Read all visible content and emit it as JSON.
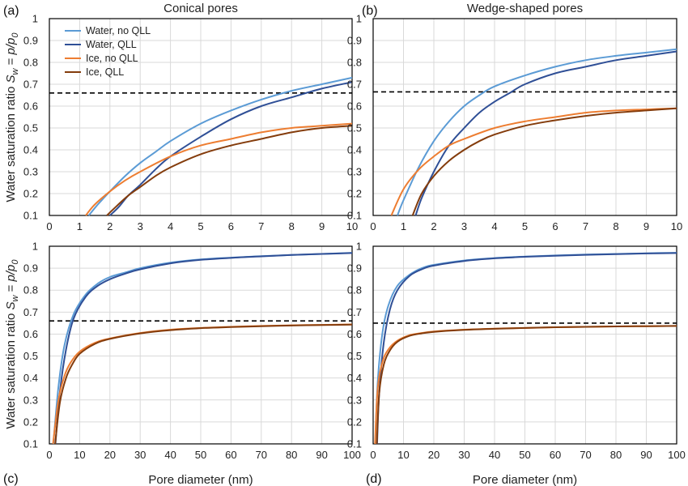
{
  "figure": {
    "y_axis_label_prefix": "Water saturation ratio ",
    "y_axis_label_math": "S_w = p/p_0",
    "legend": [
      "Water, no QLL",
      "Water, QLL",
      "Ice, no QLL",
      "Ice, QLL"
    ]
  },
  "colors": {
    "water_no_qll": "#5b9bd5",
    "water_qll": "#2f4f96",
    "ice_no_qll": "#ed7d31",
    "ice_qll": "#843c0c",
    "grid": "#d9d9d9",
    "threshold": "#000000"
  },
  "chart_data": [
    {
      "type": "line",
      "panel_label": "(a)",
      "title": "Conical pores",
      "xlabel": "",
      "ylabel": "Water saturation ratio S_w = p/p_0",
      "xlim": [
        0,
        10
      ],
      "ylim": [
        0.1,
        1
      ],
      "xticks": [
        "0",
        "1",
        "2",
        "3",
        "4",
        "5",
        "6",
        "7",
        "8",
        "9",
        "10"
      ],
      "yticks": [
        "0.1",
        "0.2",
        "0.3",
        "0.4",
        "0.5",
        "0.6",
        "0.7",
        "0.8",
        "0.9",
        "1"
      ],
      "grid": true,
      "legend_position": "top-left",
      "threshold": 0.66,
      "series": [
        {
          "name": "Water, no QLL",
          "color": "#5b9bd5",
          "x": [
            1.3,
            1.6,
            2,
            2.5,
            3,
            3.5,
            4,
            5,
            6,
            7,
            8,
            9,
            10
          ],
          "y": [
            0.1,
            0.15,
            0.21,
            0.28,
            0.34,
            0.39,
            0.44,
            0.52,
            0.58,
            0.63,
            0.67,
            0.7,
            0.73
          ]
        },
        {
          "name": "Water, QLL",
          "color": "#2f4f96",
          "x": [
            2,
            2.3,
            2.6,
            3,
            3.5,
            4,
            5,
            6,
            7,
            8,
            9,
            10
          ],
          "y": [
            0.1,
            0.14,
            0.19,
            0.24,
            0.31,
            0.37,
            0.46,
            0.54,
            0.6,
            0.64,
            0.68,
            0.71
          ]
        },
        {
          "name": "Ice, no QLL",
          "color": "#ed7d31",
          "x": [
            1.2,
            1.5,
            2,
            2.5,
            3,
            4,
            5,
            6,
            7,
            8,
            9,
            10
          ],
          "y": [
            0.1,
            0.15,
            0.21,
            0.26,
            0.3,
            0.37,
            0.42,
            0.45,
            0.48,
            0.5,
            0.51,
            0.52
          ]
        },
        {
          "name": "Ice, QLL",
          "color": "#843c0c",
          "x": [
            1.9,
            2.2,
            2.6,
            3,
            3.5,
            4,
            5,
            6,
            7,
            8,
            9,
            10
          ],
          "y": [
            0.1,
            0.14,
            0.19,
            0.23,
            0.28,
            0.32,
            0.38,
            0.42,
            0.45,
            0.48,
            0.5,
            0.51
          ]
        }
      ]
    },
    {
      "type": "line",
      "panel_label": "(b)",
      "title": "Wedge-shaped pores",
      "xlabel": "",
      "ylabel": "",
      "xlim": [
        0,
        10
      ],
      "ylim": [
        0.1,
        1
      ],
      "xticks": [
        "0",
        "1",
        "2",
        "3",
        "4",
        "5",
        "6",
        "7",
        "8",
        "9",
        "10"
      ],
      "yticks": [
        "0.1",
        "0.2",
        "0.3",
        "0.4",
        "0.5",
        "0.6",
        "0.7",
        "0.8",
        "0.9",
        "1"
      ],
      "grid": true,
      "threshold": 0.665,
      "series": [
        {
          "name": "Water, no QLL",
          "color": "#5b9bd5",
          "x": [
            0.8,
            1,
            1.5,
            2,
            2.5,
            3,
            3.5,
            4,
            5,
            6,
            7,
            8,
            9,
            10
          ],
          "y": [
            0.1,
            0.17,
            0.32,
            0.44,
            0.53,
            0.6,
            0.65,
            0.69,
            0.74,
            0.78,
            0.81,
            0.83,
            0.845,
            0.86
          ]
        },
        {
          "name": "Water, QLL",
          "color": "#2f4f96",
          "x": [
            1.4,
            1.6,
            2,
            2.5,
            3,
            3.5,
            4,
            4.5,
            5,
            6,
            7,
            8,
            9,
            10
          ],
          "y": [
            0.1,
            0.18,
            0.3,
            0.42,
            0.5,
            0.57,
            0.62,
            0.66,
            0.7,
            0.75,
            0.78,
            0.81,
            0.83,
            0.85
          ]
        },
        {
          "name": "Ice, no QLL",
          "color": "#ed7d31",
          "x": [
            0.6,
            1,
            1.5,
            2,
            2.5,
            3,
            4,
            5,
            6,
            7,
            8,
            9,
            10
          ],
          "y": [
            0.1,
            0.22,
            0.31,
            0.37,
            0.42,
            0.45,
            0.5,
            0.53,
            0.55,
            0.57,
            0.58,
            0.585,
            0.59
          ]
        },
        {
          "name": "Ice, QLL",
          "color": "#843c0c",
          "x": [
            1.3,
            1.6,
            2,
            2.5,
            3,
            3.5,
            4,
            5,
            6,
            7,
            8,
            9,
            10
          ],
          "y": [
            0.1,
            0.2,
            0.28,
            0.35,
            0.4,
            0.44,
            0.47,
            0.51,
            0.535,
            0.555,
            0.57,
            0.58,
            0.59
          ]
        }
      ]
    },
    {
      "type": "line",
      "panel_label": "(c)",
      "title": "",
      "xlabel": "Pore diameter (nm)",
      "ylabel": "Water saturation ratio S_w = p/p_0",
      "xlim": [
        0,
        100
      ],
      "ylim": [
        0.1,
        1
      ],
      "xticks": [
        "0",
        "10",
        "20",
        "30",
        "40",
        "50",
        "60",
        "70",
        "80",
        "90",
        "100"
      ],
      "yticks": [
        "0.1",
        "0.2",
        "0.3",
        "0.4",
        "0.5",
        "0.6",
        "0.7",
        "0.8",
        "0.9",
        "1"
      ],
      "grid": true,
      "threshold": 0.66,
      "series": [
        {
          "name": "Water, no QLL",
          "color": "#5b9bd5",
          "x": [
            1.3,
            3,
            5,
            8,
            12,
            16,
            20,
            25,
            30,
            40,
            50,
            60,
            70,
            80,
            90,
            100
          ],
          "y": [
            0.1,
            0.36,
            0.55,
            0.69,
            0.78,
            0.83,
            0.86,
            0.88,
            0.9,
            0.925,
            0.94,
            0.948,
            0.955,
            0.96,
            0.965,
            0.97
          ]
        },
        {
          "name": "Water, QLL",
          "color": "#2f4f96",
          "x": [
            2,
            3.5,
            5.5,
            8,
            12,
            16,
            20,
            25,
            30,
            40,
            50,
            60,
            70,
            80,
            90,
            100
          ],
          "y": [
            0.1,
            0.34,
            0.53,
            0.67,
            0.77,
            0.82,
            0.85,
            0.875,
            0.895,
            0.922,
            0.938,
            0.947,
            0.954,
            0.96,
            0.965,
            0.969
          ]
        },
        {
          "name": "Ice, no QLL",
          "color": "#ed7d31",
          "x": [
            1.2,
            3,
            5,
            7,
            10,
            15,
            20,
            30,
            40,
            50,
            60,
            70,
            80,
            90,
            100
          ],
          "y": [
            0.1,
            0.3,
            0.41,
            0.47,
            0.52,
            0.56,
            0.58,
            0.605,
            0.62,
            0.628,
            0.633,
            0.637,
            0.64,
            0.642,
            0.644
          ]
        },
        {
          "name": "Ice, QLL",
          "color": "#843c0c",
          "x": [
            1.9,
            3.5,
            5.5,
            7.5,
            10,
            15,
            20,
            30,
            40,
            50,
            60,
            70,
            80,
            90,
            100
          ],
          "y": [
            0.1,
            0.29,
            0.4,
            0.46,
            0.51,
            0.555,
            0.578,
            0.603,
            0.618,
            0.627,
            0.632,
            0.636,
            0.639,
            0.641,
            0.643
          ]
        }
      ]
    },
    {
      "type": "line",
      "panel_label": "(d)",
      "title": "",
      "xlabel": "Pore diameter (nm)",
      "ylabel": "",
      "xlim": [
        0,
        100
      ],
      "ylim": [
        0.1,
        1
      ],
      "xticks": [
        "0",
        "10",
        "20",
        "30",
        "40",
        "50",
        "60",
        "70",
        "80",
        "90",
        "100"
      ],
      "yticks": [
        "0.1",
        "0.2",
        "0.3",
        "0.4",
        "0.5",
        "0.6",
        "0.7",
        "0.8",
        "0.9",
        "1"
      ],
      "grid": true,
      "threshold": 0.65,
      "series": [
        {
          "name": "Water, no QLL",
          "color": "#5b9bd5",
          "x": [
            0.7,
            1.5,
            3,
            5,
            8,
            12,
            16,
            20,
            30,
            40,
            50,
            60,
            70,
            80,
            90,
            100
          ],
          "y": [
            0.1,
            0.38,
            0.6,
            0.73,
            0.82,
            0.87,
            0.9,
            0.915,
            0.935,
            0.946,
            0.953,
            0.958,
            0.962,
            0.965,
            0.968,
            0.97
          ]
        },
        {
          "name": "Water, QLL",
          "color": "#2f4f96",
          "x": [
            1.3,
            2,
            3.5,
            5.5,
            8,
            12,
            16,
            20,
            30,
            40,
            50,
            60,
            70,
            80,
            90,
            100
          ],
          "y": [
            0.1,
            0.33,
            0.56,
            0.71,
            0.8,
            0.865,
            0.895,
            0.912,
            0.933,
            0.945,
            0.952,
            0.957,
            0.961,
            0.964,
            0.967,
            0.969
          ]
        },
        {
          "name": "Ice, no QLL",
          "color": "#ed7d31",
          "x": [
            0.6,
            1.5,
            3,
            5,
            8,
            12,
            16,
            20,
            30,
            40,
            50,
            60,
            70,
            80,
            90,
            100
          ],
          "y": [
            0.1,
            0.35,
            0.47,
            0.53,
            0.57,
            0.595,
            0.605,
            0.612,
            0.62,
            0.625,
            0.628,
            0.631,
            0.633,
            0.635,
            0.636,
            0.637
          ]
        },
        {
          "name": "Ice, QLL",
          "color": "#843c0c",
          "x": [
            1.2,
            2,
            3.5,
            5.5,
            8,
            12,
            16,
            20,
            30,
            40,
            50,
            60,
            70,
            80,
            90,
            100
          ],
          "y": [
            0.1,
            0.33,
            0.46,
            0.525,
            0.565,
            0.592,
            0.603,
            0.61,
            0.619,
            0.624,
            0.628,
            0.631,
            0.633,
            0.635,
            0.636,
            0.637
          ]
        }
      ]
    }
  ]
}
